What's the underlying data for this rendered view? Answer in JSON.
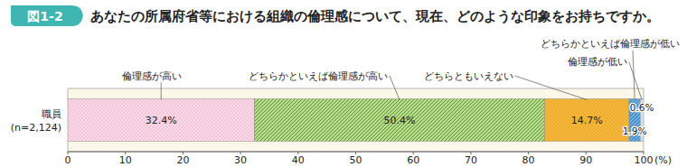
{
  "chart_data": {
    "type": "bar",
    "orientation": "horizontal",
    "stacked": true,
    "data_labels": true,
    "grid": false,
    "figure_label": "図1-2",
    "title": "あなたの所属府省等における組織の倫理感について、現在、どのような印象をお持ちですか。",
    "xlabel": "(%)",
    "categories": [
      "職員\n(n=2,124)"
    ],
    "xlim": [
      0,
      100
    ],
    "xticks": [
      0,
      10,
      20,
      30,
      40,
      50,
      60,
      70,
      80,
      90,
      100
    ],
    "series": [
      {
        "name": "倫理感が高い",
        "color": "#fbdde9",
        "values": [
          32.4
        ],
        "value_labels": [
          "32.4%"
        ]
      },
      {
        "name": "どちらかといえば倫理感が高い",
        "color": "#b9dc8a",
        "values": [
          50.4
        ],
        "value_labels": [
          "50.4%"
        ]
      },
      {
        "name": "どちらともいえない",
        "color": "#f6b93b",
        "values": [
          14.7
        ],
        "value_labels": [
          "14.7%"
        ]
      },
      {
        "name": "どちらかといえば倫理感が低い",
        "color": "#4f94cd",
        "values": [
          1.9
        ],
        "value_labels": [
          "1.9%"
        ]
      },
      {
        "name": "倫理感が低い",
        "color": "#cfe3f3",
        "values": [
          0.6
        ],
        "value_labels": [
          "0.6%"
        ]
      }
    ]
  }
}
